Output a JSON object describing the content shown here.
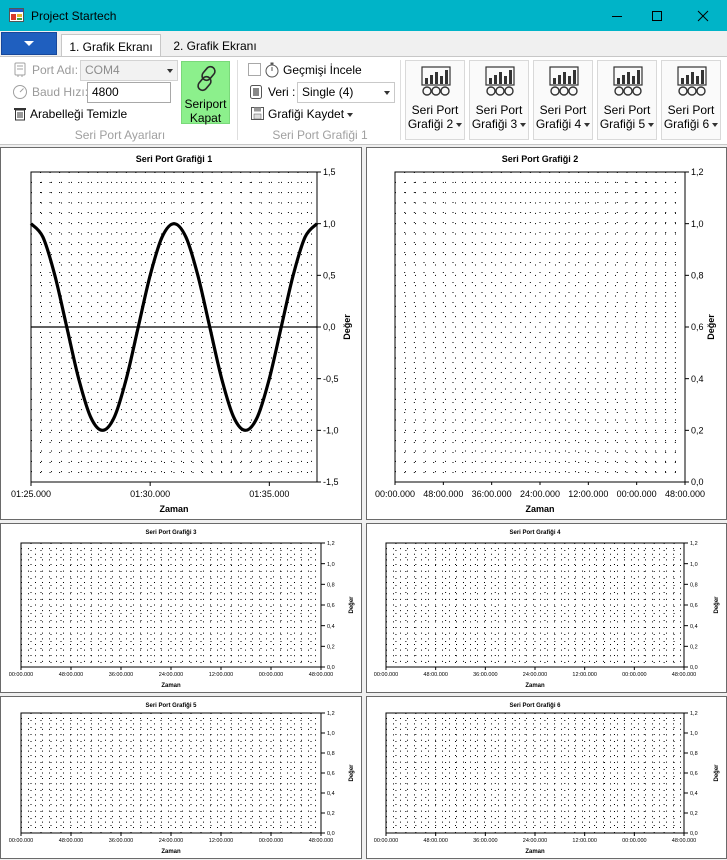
{
  "window": {
    "title": "Project Startech"
  },
  "tabs": [
    {
      "label": "1. Grafik Ekranı"
    },
    {
      "label": "2. Grafik Ekranı"
    }
  ],
  "ribbon": {
    "port_name_label": "Port Adı:",
    "port_name_value": "COM4",
    "baud_label": "Baud Hızı:",
    "baud_value": "4800",
    "clear_buffer_label": "Arabelleği Temizle",
    "serial_group_label": "Seri Port Ayarları",
    "close_button": {
      "line1": "Seriport",
      "line2": "Kapat"
    },
    "history_label": "Geçmişi İncele",
    "data_label": "Veri :",
    "data_value": "Single (4)",
    "save_chart_label": "Grafiği Kaydet",
    "chart1_group_label": "Seri Port Grafiği 1",
    "graph_buttons": [
      {
        "line1": "Seri Port",
        "line2": "Grafiği 2"
      },
      {
        "line1": "Seri Port",
        "line2": "Grafiği 3"
      },
      {
        "line1": "Seri Port",
        "line2": "Grafiği 4"
      },
      {
        "line1": "Seri Port",
        "line2": "Grafiği 5"
      },
      {
        "line1": "Seri Port",
        "line2": "Grafiği 6"
      }
    ]
  },
  "colors": {
    "titlebar": "#00b4c8",
    "accent": "#1f5fbf",
    "close_button": "#8cf08c"
  },
  "chart_data": [
    {
      "type": "line",
      "title": "Seri Port Grafiği 1",
      "xlabel": "Zaman",
      "ylabel": "Değer",
      "x_ticks": [
        "01:25.000",
        "01:30.000",
        "01:35.000"
      ],
      "x_tick_values": [
        85,
        90,
        95
      ],
      "xlim": [
        85,
        97
      ],
      "y_ticks": [
        "1,5",
        "1,0",
        "0,5",
        "0,0",
        "-0,5",
        "-1,0",
        "-1,5"
      ],
      "y_tick_values": [
        1.5,
        1.0,
        0.5,
        0.0,
        -0.5,
        -1.0,
        -1.5
      ],
      "ylim": [
        -1.5,
        1.5
      ],
      "grid": "dotted",
      "series": [
        {
          "x": [
            85,
            85.5,
            86,
            86.5,
            87,
            87.5,
            88,
            88.5,
            89,
            89.5,
            90,
            90.5,
            91,
            91.5,
            92,
            92.5,
            93,
            93.5,
            94,
            94.5,
            95,
            95.5,
            96,
            96.5,
            97
          ],
          "values": [
            1.0,
            0.87,
            0.5,
            0.0,
            -0.5,
            -0.87,
            -1.0,
            -0.87,
            -0.5,
            0.0,
            0.5,
            0.87,
            1.0,
            0.87,
            0.5,
            0.0,
            -0.5,
            -0.87,
            -1.0,
            -0.87,
            -0.5,
            0.0,
            0.5,
            0.87,
            1.0
          ]
        }
      ]
    },
    {
      "type": "line",
      "title": "Seri Port Grafiği 2",
      "xlabel": "Zaman",
      "ylabel": "Değer",
      "x_ticks": [
        "00:00.000",
        "48:00.000",
        "36:00.000",
        "24:00.000",
        "12:00.000",
        "00:00.000",
        "48:00.000"
      ],
      "y_ticks": [
        "1,2",
        "1,0",
        "0,8",
        "0,6",
        "0,4",
        "0,2",
        "0,0"
      ],
      "y_tick_values": [
        1.2,
        1.0,
        0.8,
        0.6,
        0.4,
        0.2,
        0.0
      ],
      "ylim": [
        0,
        1.2
      ],
      "grid": "dotted",
      "series": []
    },
    {
      "type": "line",
      "title": "Seri Port Grafiği 3",
      "xlabel": "Zaman",
      "ylabel": "Değer",
      "x_ticks": [
        "00:00.000",
        "48:00.000",
        "36:00.000",
        "24:00.000",
        "12:00.000",
        "00:00.000",
        "48:00.000"
      ],
      "y_ticks": [
        "1,2",
        "1,0",
        "0,8",
        "0,6",
        "0,4",
        "0,2",
        "0,0"
      ],
      "y_tick_values": [
        1.2,
        1.0,
        0.8,
        0.6,
        0.4,
        0.2,
        0.0
      ],
      "ylim": [
        0,
        1.2
      ],
      "grid": "dotted",
      "series": []
    },
    {
      "type": "line",
      "title": "Seri Port Grafiği 4",
      "xlabel": "Zaman",
      "ylabel": "Değer",
      "x_ticks": [
        "00:00.000",
        "48:00.000",
        "36:00.000",
        "24:00.000",
        "12:00.000",
        "00:00.000",
        "48:00.000"
      ],
      "y_ticks": [
        "1,2",
        "1,0",
        "0,8",
        "0,6",
        "0,4",
        "0,2",
        "0,0"
      ],
      "y_tick_values": [
        1.2,
        1.0,
        0.8,
        0.6,
        0.4,
        0.2,
        0.0
      ],
      "ylim": [
        0,
        1.2
      ],
      "grid": "dotted",
      "series": []
    },
    {
      "type": "line",
      "title": "Seri Port Grafiği 5",
      "xlabel": "Zaman",
      "ylabel": "Değer",
      "x_ticks": [
        "00:00.000",
        "48:00.000",
        "36:00.000",
        "24:00.000",
        "12:00.000",
        "00:00.000",
        "48:00.000"
      ],
      "y_ticks": [
        "1,2",
        "1,0",
        "0,8",
        "0,6",
        "0,4",
        "0,2",
        "0,0"
      ],
      "y_tick_values": [
        1.2,
        1.0,
        0.8,
        0.6,
        0.4,
        0.2,
        0.0
      ],
      "ylim": [
        0,
        1.2
      ],
      "grid": "dotted",
      "series": []
    },
    {
      "type": "line",
      "title": "Seri Port Grafiği 6",
      "xlabel": "Zaman",
      "ylabel": "Değer",
      "x_ticks": [
        "00:00.000",
        "48:00.000",
        "36:00.000",
        "24:00.000",
        "12:00.000",
        "00:00.000",
        "48:00.000"
      ],
      "y_ticks": [
        "1,2",
        "1,0",
        "0,8",
        "0,6",
        "0,4",
        "0,2",
        "0,0"
      ],
      "y_tick_values": [
        1.2,
        1.0,
        0.8,
        0.6,
        0.4,
        0.2,
        0.0
      ],
      "ylim": [
        0,
        1.2
      ],
      "grid": "dotted",
      "series": []
    }
  ]
}
